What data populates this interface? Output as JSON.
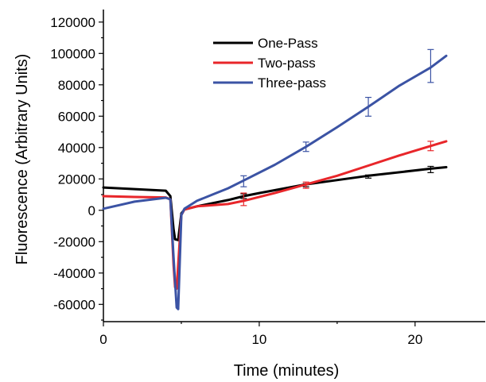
{
  "chart_data": {
    "type": "line",
    "title": "",
    "xlabel": "Time (minutes)",
    "ylabel": "Fluorescence (Arbitrary Units)",
    "xlim": [
      0,
      24.5
    ],
    "ylim": [
      -71000,
      128000
    ],
    "x_ticks": [
      0,
      10,
      20
    ],
    "x_tick_labels": [
      "0",
      "10",
      "20"
    ],
    "y_ticks": [
      -60000,
      -40000,
      -20000,
      0,
      20000,
      40000,
      60000,
      80000,
      100000,
      120000
    ],
    "y_tick_labels": [
      "-60000",
      "-40000",
      "-20000",
      "0",
      "20000",
      "40000",
      "60000",
      "80000",
      "100000",
      "120000"
    ],
    "grid": false,
    "legend_position": "top-center",
    "series": [
      {
        "name": "One-Pass",
        "color": "#000000",
        "points": [
          [
            0,
            14500
          ],
          [
            2,
            13500
          ],
          [
            4,
            12500
          ],
          [
            4.3,
            9000
          ],
          [
            4.5,
            -12000
          ],
          [
            4.6,
            -18500
          ],
          [
            4.8,
            -19000
          ],
          [
            5.0,
            -2000
          ],
          [
            5.2,
            500
          ],
          [
            6,
            2500
          ],
          [
            8,
            6500
          ],
          [
            9,
            9000
          ],
          [
            10,
            11000
          ],
          [
            13,
            16500
          ],
          [
            17,
            22000
          ],
          [
            21,
            26500
          ],
          [
            22,
            27500
          ]
        ],
        "error_bars": [
          {
            "x": 9,
            "y": 9000,
            "err": 1500
          },
          {
            "x": 13,
            "y": 16000,
            "err": 1000
          },
          {
            "x": 17,
            "y": 21500,
            "err": 1000
          },
          {
            "x": 21,
            "y": 26000,
            "err": 2000
          }
        ]
      },
      {
        "name": "Two-pass",
        "color": "#e8262a",
        "points": [
          [
            0,
            9000
          ],
          [
            2,
            8500
          ],
          [
            4,
            8200
          ],
          [
            4.3,
            7000
          ],
          [
            4.5,
            -35000
          ],
          [
            4.6,
            -49000
          ],
          [
            4.7,
            -50000
          ],
          [
            5.0,
            -3000
          ],
          [
            5.2,
            500
          ],
          [
            6,
            2500
          ],
          [
            8,
            4000
          ],
          [
            9,
            6000
          ],
          [
            11,
            11000
          ],
          [
            13,
            16500
          ],
          [
            15,
            22000
          ],
          [
            17,
            28500
          ],
          [
            19,
            35000
          ],
          [
            21,
            41000
          ],
          [
            22,
            44000
          ]
        ],
        "error_bars": [
          {
            "x": 9,
            "y": 7000,
            "err": 4000
          },
          {
            "x": 13,
            "y": 16000,
            "err": 2000
          },
          {
            "x": 17,
            "y": 28500,
            "err": 0
          },
          {
            "x": 21,
            "y": 41000,
            "err": 3000
          }
        ]
      },
      {
        "name": "Three-pass",
        "color": "#3b53a4",
        "points": [
          [
            0,
            1000
          ],
          [
            2,
            5500
          ],
          [
            4,
            8000
          ],
          [
            4.3,
            7000
          ],
          [
            4.5,
            -30000
          ],
          [
            4.7,
            -62000
          ],
          [
            4.8,
            -63000
          ],
          [
            5.0,
            -3000
          ],
          [
            5.2,
            1000
          ],
          [
            6,
            6000
          ],
          [
            7,
            10000
          ],
          [
            8,
            14000
          ],
          [
            9,
            19000
          ],
          [
            11,
            29000
          ],
          [
            13,
            40500
          ],
          [
            15,
            53000
          ],
          [
            17,
            66000
          ],
          [
            19,
            79500
          ],
          [
            21,
            91000
          ],
          [
            22,
            98500
          ]
        ],
        "error_bars": [
          {
            "x": 9,
            "y": 18500,
            "err": 3500
          },
          {
            "x": 13,
            "y": 40500,
            "err": 3000
          },
          {
            "x": 17,
            "y": 66000,
            "err": 6000
          },
          {
            "x": 21,
            "y": 92000,
            "err": 10500
          }
        ]
      }
    ]
  }
}
